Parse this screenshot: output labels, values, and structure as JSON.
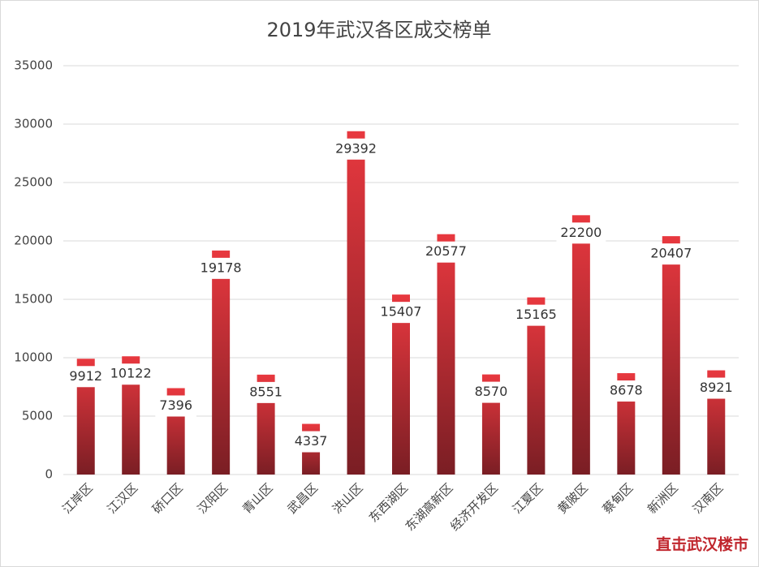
{
  "chart_data": {
    "type": "bar",
    "title": "2019年武汉各区成交榜单",
    "categories": [
      "江岸区",
      "江汉区",
      "硚口区",
      "汉阳区",
      "青山区",
      "武昌区",
      "洪山区",
      "东西湖区",
      "东湖高新区",
      "经济开发区",
      "江夏区",
      "黄陂区",
      "蔡甸区",
      "新洲区",
      "汉南区"
    ],
    "values": [
      9912,
      10122,
      7396,
      19178,
      8551,
      4337,
      29392,
      15407,
      20577,
      8570,
      15165,
      22200,
      8678,
      20407,
      8921
    ],
    "color": "#e0323a",
    "ylim": [
      0,
      35000
    ],
    "yticks": [
      0,
      5000,
      10000,
      15000,
      20000,
      25000,
      30000,
      35000
    ],
    "grid": true
  },
  "watermark": "直击武汉楼市"
}
